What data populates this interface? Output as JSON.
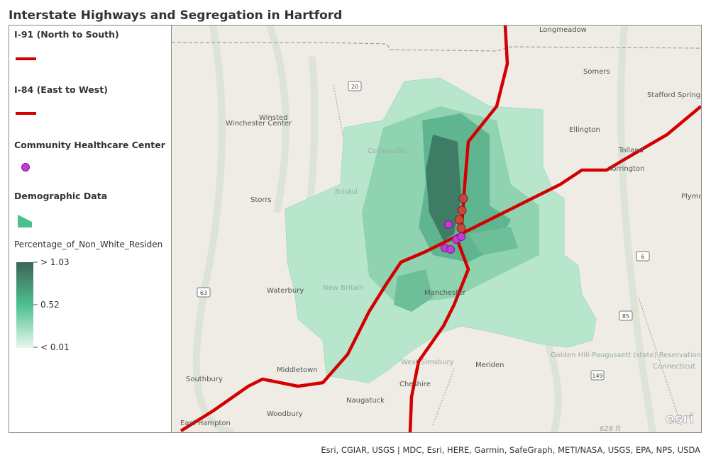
{
  "header": {
    "title": "Interstate Highways and Segregation in Hartford"
  },
  "legend": {
    "items": [
      {
        "label": "I-91 (North to South)"
      },
      {
        "label": "I-84 (East to West)"
      },
      {
        "label": "Community Healthcare Center"
      },
      {
        "label": "Demographic Data"
      }
    ],
    "field": "Percentage_of_Non_White_Residen",
    "ramp_labels": [
      "> 1.03",
      "0.52",
      "< 0.01"
    ]
  },
  "map": {
    "place_labels": [
      "Longmeadow",
      "Somers",
      "Stafford Springs",
      "Winsted",
      "Winchester Center",
      "Ellington",
      "Tolland",
      "Torrington",
      "Storrs",
      "Plymouth",
      "Waterbury",
      "Middletown",
      "Meriden",
      "Cheshire",
      "Naugatuck",
      "Woodbury",
      "Southbury",
      "East Hampton",
      "Golden Hill-Paugussett (state) Reservation",
      "Connecticut",
      "West Simsbury",
      "Collinsville",
      "Bristol",
      "New Britain",
      "Manchester"
    ],
    "road_shields": [
      "20",
      "63",
      "6",
      "85",
      "149"
    ],
    "scale_text": "628 ft",
    "logo": "esri"
  },
  "footer": {
    "attribution": "Esri, CGIAR, USGS | MDC, Esri, HERE, Garmin, SafeGraph, METI/NASA, USGS, EPA, NPS, USDA"
  }
}
